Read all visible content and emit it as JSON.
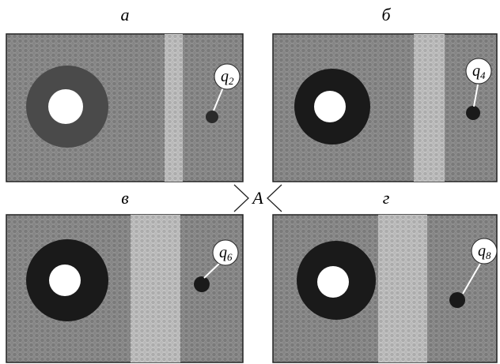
{
  "panels": [
    {
      "label": "а",
      "callout": {
        "symbol": "q",
        "subscript": "2"
      }
    },
    {
      "label": "б",
      "callout": {
        "symbol": "q",
        "subscript": "4"
      }
    },
    {
      "label": "в",
      "callout": {
        "symbol": "q",
        "subscript": "6"
      }
    },
    {
      "label": "г",
      "callout": {
        "symbol": "q",
        "subscript": "8"
      }
    }
  ],
  "center_label": "A"
}
